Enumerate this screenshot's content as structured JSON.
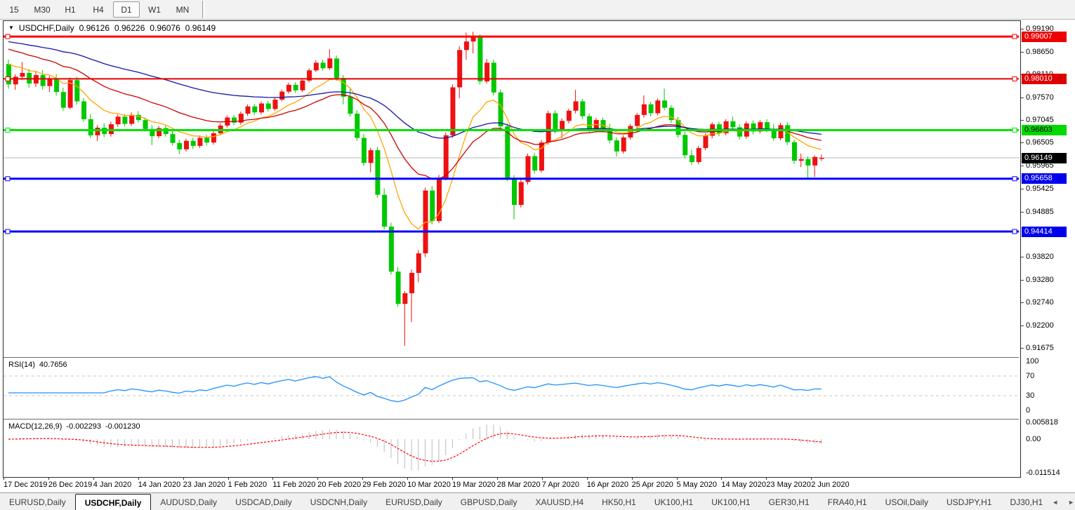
{
  "toolbar": {
    "timeframes": [
      "15",
      "M30",
      "H1",
      "H4",
      "D1",
      "W1",
      "MN"
    ],
    "active": "D1"
  },
  "chart": {
    "title": {
      "symbol_period": "USDCHF,Daily",
      "open": "0.96126",
      "high": "0.96226",
      "low": "0.96076",
      "close": "0.96149"
    },
    "dropdown_icon": "▼",
    "y_ticks": [
      "0.99190",
      "0.98650",
      "0.98110",
      "0.97570",
      "0.97045",
      "0.96505",
      "0.95965",
      "0.95425",
      "0.94885",
      "0.93820",
      "0.93280",
      "0.92740",
      "0.92200",
      "0.91675"
    ],
    "x_ticks": [
      "17 Dec 2019",
      "26 Dec 2019",
      "4 Jan 2020",
      "14 Jan 2020",
      "23 Jan 2020",
      "1 Feb 2020",
      "11 Feb 2020",
      "20 Feb 2020",
      "29 Feb 2020",
      "10 Mar 2020",
      "19 Mar 2020",
      "28 Mar 2020",
      "7 Apr 2020",
      "16 Apr 2020",
      "25 Apr 2020",
      "5 May 2020",
      "14 May 2020",
      "23 May 2020",
      "2 Jun 2020"
    ],
    "hlines": [
      {
        "value": 0.99007,
        "label": "0.99007",
        "color": "#FF0000",
        "badge_bg": "#EE0000",
        "badge_fg": "#FFFFFF",
        "width": 3
      },
      {
        "value": 0.9801,
        "label": "0.98010",
        "color": "#E40000",
        "badge_bg": "#DD0000",
        "badge_fg": "#FFFFFF",
        "width": 2
      },
      {
        "value": 0.96803,
        "label": "0.96803",
        "color": "#00E300",
        "badge_bg": "#00D900",
        "badge_fg": "#000000",
        "width": 3
      },
      {
        "value": 0.95658,
        "label": "0.95658",
        "color": "#0000FF",
        "badge_bg": "#0000EE",
        "badge_fg": "#FFFFFF",
        "width": 3
      },
      {
        "value": 0.94414,
        "label": "0.94414",
        "color": "#0000FF",
        "badge_bg": "#0000EE",
        "badge_fg": "#FFFFFF",
        "width": 3
      }
    ],
    "current_price": {
      "value": 0.96149,
      "label": "0.96149",
      "badge_bg": "#000000",
      "badge_fg": "#FFFFFF",
      "line_color": "#B8B8B8"
    }
  },
  "indicators": {
    "rsi": {
      "label": "RSI(14)",
      "value": "40.7656",
      "levels": [
        "100",
        "70",
        "30",
        "0"
      ],
      "level_values": [
        100,
        70,
        30,
        0
      ],
      "dashed_levels": [
        70,
        30
      ],
      "color": "#1E90FF"
    },
    "macd": {
      "label": "MACD(12,26,9)",
      "macd_value": "-0.002293",
      "signal_value": "-0.001230",
      "axis_labels": [
        "0.005818",
        "0.00",
        "-0.011514"
      ],
      "axis_values": [
        0.005818,
        0,
        -0.011514
      ],
      "hist_color": "#BBBBBB",
      "signal_color": "#FF0000"
    }
  },
  "tabs": {
    "items": [
      "EURUSD,Daily",
      "USDCHF,Daily",
      "AUDUSD,Daily",
      "USDCAD,Daily",
      "USDCNH,Daily",
      "EURUSD,Daily",
      "GBPUSD,Daily",
      "XAUUSD,H4",
      "HK50,H1",
      "UK100,H1",
      "UK100,H1",
      "GER30,H1",
      "FRA40,H1",
      "USOil,Daily",
      "USDJPY,H1",
      "DJ30,H1"
    ],
    "active_index": 1,
    "left_arrow": "◄",
    "right_arrow": "►"
  },
  "chart_data": {
    "type": "candlestick",
    "symbol": "USDCHF",
    "period": "Daily",
    "up_color_convention": "red-up-green-down",
    "colors": {
      "bull": "#EE1111",
      "bear": "#00C800",
      "ma_fast": "#FFA500",
      "ma_mid": "#CC0000",
      "ma_slow": "#1515A8"
    },
    "price_range_top": 0.9919,
    "price_range_bottom": 0.91675,
    "moving_averages": [
      {
        "name": "ma-fast",
        "period": 10,
        "seed": 0.9846,
        "color": "#FFA500"
      },
      {
        "name": "ma-mid",
        "period": 25,
        "seed": 0.9878,
        "color": "#CC0000"
      },
      {
        "name": "ma-slow",
        "period": 60,
        "seed": 0.9892,
        "color": "#1515A8"
      }
    ],
    "ohlc": [
      [
        0.9836,
        0.9846,
        0.9778,
        0.9788
      ],
      [
        0.9788,
        0.9812,
        0.9775,
        0.9806
      ],
      [
        0.9806,
        0.9841,
        0.9798,
        0.9815
      ],
      [
        0.9815,
        0.9824,
        0.978,
        0.979
      ],
      [
        0.979,
        0.9818,
        0.9782,
        0.981
      ],
      [
        0.981,
        0.9822,
        0.9776,
        0.9784
      ],
      [
        0.9784,
        0.9808,
        0.977,
        0.98
      ],
      [
        0.98,
        0.9812,
        0.9762,
        0.977
      ],
      [
        0.977,
        0.978,
        0.9726,
        0.9733
      ],
      [
        0.9733,
        0.9804,
        0.973,
        0.9798
      ],
      [
        0.9798,
        0.9806,
        0.974,
        0.9748
      ],
      [
        0.9748,
        0.9756,
        0.97,
        0.9706
      ],
      [
        0.9706,
        0.9718,
        0.9662,
        0.9668
      ],
      [
        0.9668,
        0.9692,
        0.9655,
        0.9686
      ],
      [
        0.9686,
        0.9696,
        0.9664,
        0.9671
      ],
      [
        0.9671,
        0.97,
        0.9665,
        0.9694
      ],
      [
        0.9694,
        0.9717,
        0.9688,
        0.9712
      ],
      [
        0.9712,
        0.9718,
        0.9689,
        0.9695
      ],
      [
        0.9695,
        0.9722,
        0.969,
        0.9716
      ],
      [
        0.9716,
        0.9725,
        0.9698,
        0.9704
      ],
      [
        0.9704,
        0.971,
        0.9677,
        0.9683
      ],
      [
        0.9683,
        0.9692,
        0.9645,
        0.9666
      ],
      [
        0.9666,
        0.969,
        0.9661,
        0.9685
      ],
      [
        0.9685,
        0.9691,
        0.9665,
        0.9671
      ],
      [
        0.9671,
        0.9678,
        0.9644,
        0.965
      ],
      [
        0.965,
        0.9658,
        0.9624,
        0.9635
      ],
      [
        0.9635,
        0.966,
        0.963,
        0.9655
      ],
      [
        0.9655,
        0.9662,
        0.9636,
        0.9643
      ],
      [
        0.9643,
        0.9668,
        0.9638,
        0.9662
      ],
      [
        0.9662,
        0.9669,
        0.9644,
        0.9651
      ],
      [
        0.9651,
        0.9678,
        0.9646,
        0.9673
      ],
      [
        0.9673,
        0.9696,
        0.9668,
        0.9691
      ],
      [
        0.9691,
        0.9715,
        0.9686,
        0.971
      ],
      [
        0.971,
        0.9716,
        0.9692,
        0.9698
      ],
      [
        0.9698,
        0.9724,
        0.9693,
        0.9719
      ],
      [
        0.9719,
        0.9741,
        0.9714,
        0.9736
      ],
      [
        0.9736,
        0.9742,
        0.9716,
        0.9722
      ],
      [
        0.9722,
        0.9748,
        0.9717,
        0.9743
      ],
      [
        0.9743,
        0.9749,
        0.9724,
        0.973
      ],
      [
        0.973,
        0.9757,
        0.9726,
        0.9752
      ],
      [
        0.9752,
        0.9776,
        0.9748,
        0.9771
      ],
      [
        0.9771,
        0.9792,
        0.9766,
        0.9787
      ],
      [
        0.9787,
        0.9793,
        0.9768,
        0.9774
      ],
      [
        0.9774,
        0.9802,
        0.977,
        0.9797
      ],
      [
        0.9797,
        0.9826,
        0.9793,
        0.9821
      ],
      [
        0.9821,
        0.9845,
        0.9817,
        0.9839
      ],
      [
        0.9839,
        0.9846,
        0.982,
        0.9826
      ],
      [
        0.9826,
        0.9871,
        0.9822,
        0.9849
      ],
      [
        0.9849,
        0.9856,
        0.9796,
        0.9803
      ],
      [
        0.9803,
        0.981,
        0.9741,
        0.9759
      ],
      [
        0.9759,
        0.9778,
        0.9712,
        0.9719
      ],
      [
        0.9719,
        0.9727,
        0.9655,
        0.9662
      ],
      [
        0.9662,
        0.9671,
        0.9596,
        0.9603
      ],
      [
        0.9603,
        0.9639,
        0.9581,
        0.9633
      ],
      [
        0.9633,
        0.9641,
        0.9521,
        0.9528
      ],
      [
        0.9528,
        0.9543,
        0.9446,
        0.9453
      ],
      [
        0.9453,
        0.9462,
        0.934,
        0.9347
      ],
      [
        0.9347,
        0.9358,
        0.9264,
        0.9271
      ],
      [
        0.9271,
        0.9301,
        0.9172,
        0.9296
      ],
      [
        0.9296,
        0.9352,
        0.9228,
        0.9344
      ],
      [
        0.9344,
        0.9398,
        0.9322,
        0.939
      ],
      [
        0.939,
        0.9545,
        0.9381,
        0.9538
      ],
      [
        0.9538,
        0.9549,
        0.9458,
        0.9466
      ],
      [
        0.9466,
        0.9575,
        0.9461,
        0.9568
      ],
      [
        0.9568,
        0.9675,
        0.9562,
        0.9668
      ],
      [
        0.9668,
        0.9788,
        0.9662,
        0.9781
      ],
      [
        0.9781,
        0.9878,
        0.9755,
        0.9869
      ],
      [
        0.9869,
        0.991,
        0.9846,
        0.9889
      ],
      [
        0.9889,
        0.9912,
        0.9861,
        0.9901
      ],
      [
        0.9901,
        0.9906,
        0.9788,
        0.9795
      ],
      [
        0.9795,
        0.9848,
        0.979,
        0.9839
      ],
      [
        0.9839,
        0.9846,
        0.9762,
        0.9769
      ],
      [
        0.9769,
        0.9776,
        0.9682,
        0.9689
      ],
      [
        0.9689,
        0.9696,
        0.956,
        0.9567
      ],
      [
        0.9567,
        0.9574,
        0.947,
        0.9504
      ],
      [
        0.9504,
        0.9564,
        0.9498,
        0.9558
      ],
      [
        0.9558,
        0.9625,
        0.9552,
        0.9619
      ],
      [
        0.9619,
        0.9626,
        0.9578,
        0.9585
      ],
      [
        0.9585,
        0.9657,
        0.958,
        0.9651
      ],
      [
        0.9651,
        0.9726,
        0.9646,
        0.972
      ],
      [
        0.972,
        0.9727,
        0.9672,
        0.9679
      ],
      [
        0.9679,
        0.9708,
        0.9661,
        0.9702
      ],
      [
        0.9702,
        0.9731,
        0.9696,
        0.9726
      ],
      [
        0.9726,
        0.9775,
        0.972,
        0.9748
      ],
      [
        0.9748,
        0.9754,
        0.9706,
        0.9713
      ],
      [
        0.9713,
        0.9719,
        0.9675,
        0.9682
      ],
      [
        0.9682,
        0.9709,
        0.9676,
        0.9704
      ],
      [
        0.9704,
        0.971,
        0.9677,
        0.9684
      ],
      [
        0.9684,
        0.9695,
        0.9649,
        0.9656
      ],
      [
        0.9656,
        0.9663,
        0.9618,
        0.963
      ],
      [
        0.963,
        0.9668,
        0.9625,
        0.9663
      ],
      [
        0.9663,
        0.9695,
        0.9658,
        0.969
      ],
      [
        0.969,
        0.9721,
        0.9684,
        0.9716
      ],
      [
        0.9716,
        0.9762,
        0.971,
        0.9741
      ],
      [
        0.9741,
        0.9747,
        0.9713,
        0.972
      ],
      [
        0.972,
        0.9755,
        0.9715,
        0.975
      ],
      [
        0.975,
        0.9778,
        0.9727,
        0.9733
      ],
      [
        0.9733,
        0.9739,
        0.9697,
        0.9704
      ],
      [
        0.9704,
        0.9711,
        0.9662,
        0.9669
      ],
      [
        0.9669,
        0.9676,
        0.9614,
        0.9621
      ],
      [
        0.9621,
        0.9634,
        0.9598,
        0.9605
      ],
      [
        0.9605,
        0.9643,
        0.96,
        0.9638
      ],
      [
        0.9638,
        0.9672,
        0.9633,
        0.9667
      ],
      [
        0.9667,
        0.9699,
        0.9661,
        0.9694
      ],
      [
        0.9694,
        0.97,
        0.9666,
        0.9673
      ],
      [
        0.9673,
        0.9706,
        0.9668,
        0.9701
      ],
      [
        0.9701,
        0.9712,
        0.968,
        0.9687
      ],
      [
        0.9687,
        0.9694,
        0.9658,
        0.9665
      ],
      [
        0.9665,
        0.9701,
        0.966,
        0.9696
      ],
      [
        0.9696,
        0.9703,
        0.967,
        0.9677
      ],
      [
        0.9677,
        0.9704,
        0.9672,
        0.9699
      ],
      [
        0.9699,
        0.9706,
        0.9675,
        0.9682
      ],
      [
        0.9682,
        0.9695,
        0.9655,
        0.9661
      ],
      [
        0.9661,
        0.9697,
        0.9656,
        0.9692
      ],
      [
        0.9692,
        0.9699,
        0.9645,
        0.9652
      ],
      [
        0.9652,
        0.9658,
        0.9601,
        0.9608
      ],
      [
        0.9608,
        0.9625,
        0.9593,
        0.9612
      ],
      [
        0.9612,
        0.9618,
        0.9566,
        0.9597
      ],
      [
        0.9597,
        0.9621,
        0.957,
        0.9617
      ],
      [
        0.96126,
        0.96226,
        0.96076,
        0.96149
      ]
    ]
  }
}
